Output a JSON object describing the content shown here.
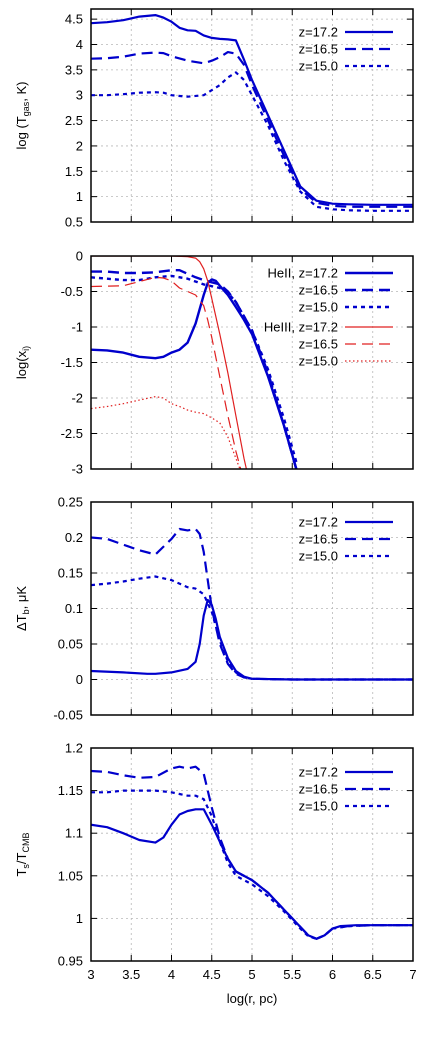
{
  "colors": {
    "blue": "#0000cc",
    "red": "#e02020"
  },
  "chart_data": [
    {
      "type": "line",
      "ylabel": "log (T_gas, K)",
      "xlim": [
        3,
        7
      ],
      "ylim": [
        0.5,
        4.7
      ],
      "ytick_labels": [
        "0.5",
        "1",
        "1.5",
        "2",
        "2.5",
        "3",
        "3.5",
        "4",
        "4.5"
      ],
      "yticks": [
        0.5,
        1,
        1.5,
        2,
        2.5,
        3,
        3.5,
        4,
        4.5
      ],
      "legend_position": "top-right",
      "series": [
        {
          "name": "z=17.2",
          "color": "#0000cc",
          "dash": "solid",
          "x": [
            3.0,
            3.2,
            3.4,
            3.6,
            3.8,
            3.9,
            4.0,
            4.1,
            4.2,
            4.3,
            4.4,
            4.5,
            4.6,
            4.7,
            4.8,
            4.9,
            5.0,
            5.2,
            5.4,
            5.6,
            5.8,
            6.0,
            6.2,
            6.5,
            7.0
          ],
          "y": [
            4.42,
            4.44,
            4.48,
            4.55,
            4.58,
            4.53,
            4.45,
            4.33,
            4.28,
            4.27,
            4.18,
            4.13,
            4.11,
            4.1,
            4.08,
            3.7,
            3.3,
            2.6,
            1.9,
            1.2,
            0.92,
            0.86,
            0.85,
            0.84,
            0.84
          ]
        },
        {
          "name": "z=16.5",
          "color": "#0000cc",
          "dash": "long",
          "x": [
            3.0,
            3.2,
            3.4,
            3.6,
            3.8,
            3.9,
            4.0,
            4.2,
            4.4,
            4.5,
            4.6,
            4.7,
            4.8,
            4.9,
            5.0,
            5.2,
            5.4,
            5.6,
            5.8,
            6.0,
            6.2,
            6.5,
            7.0
          ],
          "y": [
            3.72,
            3.73,
            3.76,
            3.82,
            3.84,
            3.83,
            3.77,
            3.68,
            3.63,
            3.68,
            3.75,
            3.85,
            3.82,
            3.6,
            3.2,
            2.5,
            1.8,
            1.15,
            0.88,
            0.82,
            0.8,
            0.8,
            0.8
          ]
        },
        {
          "name": "z=15.0",
          "color": "#0000cc",
          "dash": "short",
          "x": [
            3.0,
            3.2,
            3.4,
            3.6,
            3.8,
            3.9,
            4.0,
            4.2,
            4.4,
            4.6,
            4.7,
            4.8,
            4.9,
            5.0,
            5.2,
            5.4,
            5.6,
            5.8,
            6.0,
            6.2,
            6.5,
            7.0
          ],
          "y": [
            3.0,
            3.0,
            3.02,
            3.05,
            3.06,
            3.05,
            3.0,
            2.97,
            3.0,
            3.2,
            3.35,
            3.45,
            3.3,
            3.0,
            2.4,
            1.7,
            1.1,
            0.8,
            0.75,
            0.73,
            0.72,
            0.72
          ]
        }
      ]
    },
    {
      "type": "line",
      "ylabel": "log(x_i)",
      "xlim": [
        3,
        7
      ],
      "ylim": [
        -3,
        0
      ],
      "ytick_labels": [
        "-3",
        "-2.5",
        "-2",
        "-1.5",
        "-1",
        "-0.5",
        "0"
      ],
      "yticks": [
        -3,
        -2.5,
        -2,
        -1.5,
        -1,
        -0.5,
        0
      ],
      "legend_position": "top-right",
      "series": [
        {
          "name": "HeII, z=17.2",
          "color": "#0000cc",
          "dash": "solid",
          "width": 2.4,
          "x": [
            3.0,
            3.2,
            3.4,
            3.6,
            3.8,
            3.9,
            4.0,
            4.1,
            4.2,
            4.3,
            4.4,
            4.45,
            4.5,
            4.55,
            4.6,
            4.7,
            4.8,
            4.9,
            5.0,
            5.2,
            5.4,
            5.55
          ],
          "y": [
            -1.32,
            -1.33,
            -1.36,
            -1.42,
            -1.44,
            -1.42,
            -1.36,
            -1.32,
            -1.22,
            -0.95,
            -0.55,
            -0.38,
            -0.33,
            -0.35,
            -0.42,
            -0.55,
            -0.72,
            -0.9,
            -1.1,
            -1.7,
            -2.4,
            -3.0
          ]
        },
        {
          "name": "z=16.5",
          "color": "#0000cc",
          "dash": "long",
          "width": 2.4,
          "x": [
            3.0,
            3.2,
            3.4,
            3.6,
            3.8,
            4.0,
            4.1,
            4.2,
            4.3,
            4.4,
            4.5,
            4.6,
            4.7,
            4.8,
            4.9,
            5.0,
            5.2,
            5.4,
            5.55
          ],
          "y": [
            -0.22,
            -0.22,
            -0.24,
            -0.24,
            -0.23,
            -0.2,
            -0.2,
            -0.25,
            -0.3,
            -0.34,
            -0.37,
            -0.4,
            -0.5,
            -0.65,
            -0.85,
            -1.05,
            -1.65,
            -2.4,
            -3.0
          ]
        },
        {
          "name": "z=15.0",
          "color": "#0000cc",
          "dash": "short",
          "width": 2.4,
          "x": [
            3.0,
            3.2,
            3.4,
            3.6,
            3.8,
            4.0,
            4.2,
            4.4,
            4.6,
            4.7,
            4.8,
            4.9,
            5.0,
            5.2,
            5.4,
            5.55
          ],
          "y": [
            -0.3,
            -0.32,
            -0.34,
            -0.34,
            -0.3,
            -0.28,
            -0.32,
            -0.4,
            -0.45,
            -0.52,
            -0.65,
            -0.85,
            -1.05,
            -1.6,
            -2.3,
            -2.9
          ]
        },
        {
          "name": "HeIII, z=17.2",
          "color": "#e02020",
          "dash": "solid",
          "width": 1.2,
          "x": [
            3.0,
            3.5,
            4.0,
            4.2,
            4.3,
            4.35,
            4.4,
            4.45,
            4.5,
            4.6,
            4.7,
            4.8,
            4.9,
            4.93
          ],
          "y": [
            0.0,
            0.0,
            0.0,
            -0.01,
            -0.03,
            -0.08,
            -0.18,
            -0.35,
            -0.6,
            -1.1,
            -1.65,
            -2.25,
            -2.85,
            -3.0
          ]
        },
        {
          "name": "z=16.5",
          "color": "#e02020",
          "dash": "long",
          "width": 1.2,
          "x": [
            3.0,
            3.4,
            3.7,
            3.8,
            3.9,
            4.0,
            4.1,
            4.2,
            4.3,
            4.4,
            4.45,
            4.5,
            4.6,
            4.7,
            4.8,
            4.86
          ],
          "y": [
            -0.43,
            -0.42,
            -0.33,
            -0.3,
            -0.31,
            -0.35,
            -0.45,
            -0.5,
            -0.55,
            -0.7,
            -0.9,
            -1.15,
            -1.7,
            -2.25,
            -2.75,
            -3.0
          ]
        },
        {
          "name": "z=15.0",
          "color": "#e02020",
          "dash": "dot",
          "width": 1.2,
          "x": [
            3.0,
            3.2,
            3.4,
            3.6,
            3.8,
            3.9,
            4.0,
            4.1,
            4.2,
            4.3,
            4.4,
            4.5,
            4.6,
            4.7,
            4.8,
            4.85
          ],
          "y": [
            -2.15,
            -2.12,
            -2.08,
            -2.03,
            -1.98,
            -2.0,
            -2.08,
            -2.12,
            -2.17,
            -2.2,
            -2.22,
            -2.28,
            -2.35,
            -2.55,
            -2.85,
            -3.0
          ]
        }
      ]
    },
    {
      "type": "line",
      "ylabel": "ΔT_b, μK",
      "xlim": [
        3,
        7
      ],
      "ylim": [
        -0.05,
        0.25
      ],
      "ytick_labels": [
        "-0.05",
        "0",
        "0.05",
        "0.1",
        "0.15",
        "0.2",
        "0.25"
      ],
      "yticks": [
        -0.05,
        0,
        0.05,
        0.1,
        0.15,
        0.2,
        0.25
      ],
      "legend_position": "top-right",
      "series": [
        {
          "name": "z=17.2",
          "color": "#0000cc",
          "dash": "solid",
          "x": [
            3.0,
            3.4,
            3.7,
            3.8,
            4.0,
            4.2,
            4.3,
            4.35,
            4.4,
            4.45,
            4.5,
            4.55,
            4.6,
            4.7,
            4.8,
            4.9,
            5.0,
            5.5,
            7.0
          ],
          "y": [
            0.012,
            0.01,
            0.008,
            0.008,
            0.01,
            0.015,
            0.025,
            0.05,
            0.09,
            0.112,
            0.105,
            0.085,
            0.06,
            0.03,
            0.012,
            0.004,
            0.001,
            0.0,
            0.0
          ]
        },
        {
          "name": "z=16.5",
          "color": "#0000cc",
          "dash": "long",
          "x": [
            3.0,
            3.2,
            3.4,
            3.6,
            3.8,
            4.0,
            4.1,
            4.2,
            4.3,
            4.35,
            4.4,
            4.5,
            4.6,
            4.7,
            4.8,
            4.9,
            5.0,
            5.5,
            7.0
          ],
          "y": [
            0.2,
            0.198,
            0.19,
            0.182,
            0.176,
            0.198,
            0.212,
            0.21,
            0.212,
            0.205,
            0.18,
            0.1,
            0.05,
            0.022,
            0.008,
            0.003,
            0.001,
            0.0,
            0.0
          ]
        },
        {
          "name": "z=15.0",
          "color": "#0000cc",
          "dash": "short",
          "x": [
            3.0,
            3.2,
            3.4,
            3.6,
            3.8,
            4.0,
            4.1,
            4.2,
            4.3,
            4.4,
            4.5,
            4.6,
            4.7,
            4.8,
            4.9,
            5.0,
            5.5,
            7.0
          ],
          "y": [
            0.133,
            0.135,
            0.138,
            0.142,
            0.145,
            0.14,
            0.135,
            0.13,
            0.128,
            0.12,
            0.095,
            0.055,
            0.025,
            0.01,
            0.003,
            0.001,
            0.0,
            0.0
          ]
        }
      ]
    },
    {
      "type": "line",
      "xlabel": "log(r, pc)",
      "ylabel": "T_s/T_CMB",
      "xlim": [
        3,
        7
      ],
      "ylim": [
        0.95,
        1.2
      ],
      "xtick_labels": [
        "3",
        "3.5",
        "4",
        "4.5",
        "5",
        "5.5",
        "6",
        "6.5",
        "7"
      ],
      "xticks": [
        3,
        3.5,
        4,
        4.5,
        5,
        5.5,
        6,
        6.5,
        7
      ],
      "ytick_labels": [
        "0.95",
        "1",
        "1.05",
        "1.1",
        "1.15",
        "1.2"
      ],
      "yticks": [
        0.95,
        1,
        1.05,
        1.1,
        1.15,
        1.2
      ],
      "legend_position": "top-right",
      "series": [
        {
          "name": "z=17.2",
          "color": "#0000cc",
          "dash": "solid",
          "x": [
            3.0,
            3.2,
            3.4,
            3.6,
            3.8,
            3.9,
            4.0,
            4.1,
            4.2,
            4.3,
            4.4,
            4.5,
            4.6,
            4.7,
            4.8,
            5.0,
            5.2,
            5.4,
            5.6,
            5.7,
            5.8,
            5.9,
            6.0,
            6.1,
            6.3,
            6.5,
            7.0
          ],
          "y": [
            1.11,
            1.107,
            1.1,
            1.092,
            1.089,
            1.095,
            1.11,
            1.122,
            1.126,
            1.128,
            1.128,
            1.11,
            1.09,
            1.07,
            1.055,
            1.045,
            1.03,
            1.01,
            0.99,
            0.98,
            0.976,
            0.98,
            0.988,
            0.991,
            0.992,
            0.992,
            0.992
          ]
        },
        {
          "name": "z=16.5",
          "color": "#0000cc",
          "dash": "long",
          "x": [
            3.0,
            3.2,
            3.4,
            3.6,
            3.8,
            4.0,
            4.1,
            4.2,
            4.3,
            4.4,
            4.5,
            4.6,
            4.7,
            4.8,
            5.0,
            5.2,
            5.4,
            5.6,
            5.7,
            5.8,
            5.9,
            6.0,
            6.2,
            6.5,
            7.0
          ],
          "y": [
            1.173,
            1.172,
            1.168,
            1.165,
            1.166,
            1.176,
            1.178,
            1.176,
            1.178,
            1.17,
            1.13,
            1.095,
            1.07,
            1.055,
            1.045,
            1.03,
            1.01,
            0.99,
            0.98,
            0.976,
            0.98,
            0.988,
            0.991,
            0.992,
            0.992
          ]
        },
        {
          "name": "z=15.0",
          "color": "#0000cc",
          "dash": "short",
          "x": [
            3.0,
            3.2,
            3.4,
            3.6,
            3.8,
            4.0,
            4.1,
            4.2,
            4.3,
            4.4,
            4.5,
            4.6,
            4.7,
            4.8,
            5.0,
            5.2,
            5.4,
            5.6,
            5.7,
            5.8,
            5.9,
            6.0,
            6.2,
            6.5,
            7.0
          ],
          "y": [
            1.148,
            1.148,
            1.15,
            1.15,
            1.15,
            1.148,
            1.146,
            1.144,
            1.144,
            1.14,
            1.12,
            1.09,
            1.065,
            1.05,
            1.04,
            1.026,
            1.008,
            0.988,
            0.979,
            0.976,
            0.98,
            0.988,
            0.991,
            0.992,
            0.992
          ]
        }
      ]
    }
  ]
}
